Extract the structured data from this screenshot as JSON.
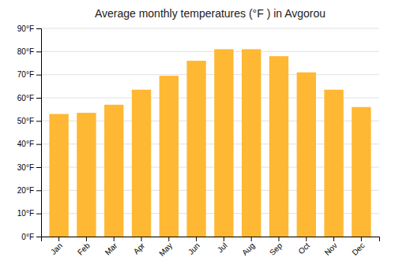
{
  "chart_data": {
    "type": "bar",
    "title": "Average monthly temperatures (°F ) in Avgorou",
    "categories": [
      "Jan",
      "Feb",
      "Mar",
      "Apr",
      "May",
      "Jun",
      "Jul",
      "Aug",
      "Sep",
      "Oct",
      "Nov",
      "Dec"
    ],
    "values": [
      53,
      53.5,
      57,
      63.5,
      69.5,
      76,
      81,
      81,
      78,
      71,
      63.5,
      56
    ],
    "color": "#FFB833",
    "ylim": [
      0,
      90
    ],
    "yticks": [
      {
        "value": 0,
        "label": "0°F"
      },
      {
        "value": 10,
        "label": "10°F"
      },
      {
        "value": 20,
        "label": "20°F"
      },
      {
        "value": 30,
        "label": "30°F"
      },
      {
        "value": 40,
        "label": "40°F"
      },
      {
        "value": 50,
        "label": "50°F"
      },
      {
        "value": 60,
        "label": "60°F"
      },
      {
        "value": 70,
        "label": "70°F"
      },
      {
        "value": 80,
        "label": "80°F"
      },
      {
        "value": 90,
        "label": "90°F"
      }
    ],
    "grid": true
  }
}
